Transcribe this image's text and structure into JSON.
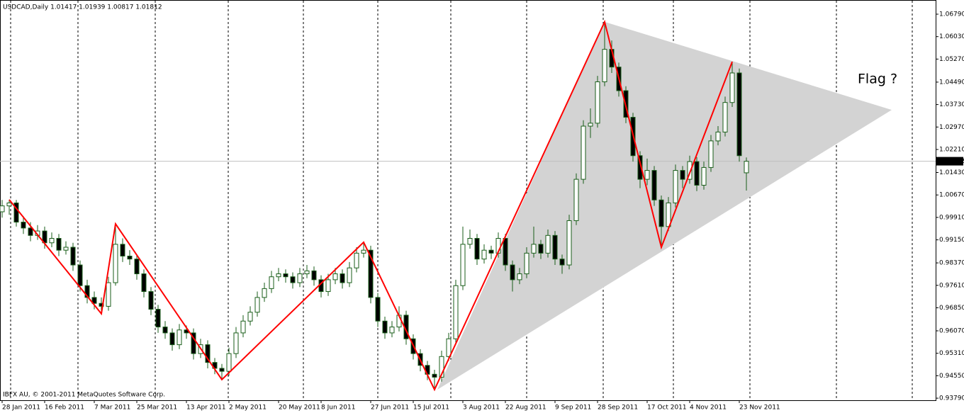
{
  "chart_data": {
    "type": "candlestick",
    "title": "USDCAD,Daily  1.01417 1.01939 1.00817 1.01812",
    "footer": "IBFX AU, © 2001-2011 MetaQuotes Software Corp.",
    "annotation": {
      "text": "Flag ?",
      "color": "#ff0000"
    },
    "candle_colors": {
      "up": "#ffffff",
      "down": "#000000",
      "outline": "#1a5e1a"
    },
    "categories": [
      "28 Jan 2011",
      null,
      null,
      null,
      null,
      null,
      "16 Feb 2011",
      null,
      null,
      null,
      null,
      null,
      null,
      "7 Mar 2011",
      null,
      null,
      null,
      null,
      null,
      "25 Mar 2011",
      null,
      null,
      null,
      null,
      null,
      null,
      "13 Apr 2011",
      null,
      null,
      null,
      null,
      null,
      "2 May 2011",
      null,
      null,
      null,
      null,
      null,
      null,
      "20 May 2011",
      null,
      null,
      null,
      null,
      null,
      "8 Jun 2011",
      null,
      null,
      null,
      null,
      null,
      null,
      "27 Jun 2011",
      null,
      null,
      null,
      null,
      null,
      "15 Jul 2011",
      null,
      null,
      null,
      null,
      null,
      null,
      "3 Aug 2011",
      null,
      null,
      null,
      null,
      null,
      "22 Aug 2011",
      null,
      null,
      null,
      null,
      null,
      null,
      "9 Sep 2011",
      null,
      null,
      null,
      null,
      null,
      "28 Sep 2011",
      null,
      null,
      null,
      null,
      null,
      null,
      "17 Oct 2011",
      null,
      null,
      null,
      null,
      null,
      "4 Nov 2011",
      null,
      null,
      null,
      null,
      null,
      null,
      "23 Nov 2011",
      null
    ],
    "ohlc": [
      [
        1.001,
        1.005,
        0.999,
        1.003
      ],
      [
        1.003,
        1.0051,
        1.0,
        1.004
      ],
      [
        1.004,
        1.005,
        0.996,
        0.9975
      ],
      [
        0.9975,
        0.9995,
        0.9935,
        0.9955
      ],
      [
        0.9955,
        0.9975,
        0.991,
        0.993
      ],
      [
        0.993,
        0.9965,
        0.9915,
        0.9945
      ],
      [
        0.9945,
        0.996,
        0.9885,
        0.9905
      ],
      [
        0.9905,
        0.994,
        0.989,
        0.992
      ],
      [
        0.992,
        0.9935,
        0.986,
        0.988
      ],
      [
        0.988,
        0.991,
        0.9865,
        0.989
      ],
      [
        0.989,
        0.9905,
        0.981,
        0.983
      ],
      [
        0.983,
        0.9845,
        0.974,
        0.976
      ],
      [
        0.976,
        0.978,
        0.97,
        0.972
      ],
      [
        0.972,
        0.974,
        0.968,
        0.97
      ],
      [
        0.97,
        0.972,
        0.9665,
        0.969
      ],
      [
        0.969,
        0.979,
        0.9675,
        0.977
      ],
      [
        0.977,
        0.9969,
        0.976,
        0.99
      ],
      [
        0.99,
        0.992,
        0.984,
        0.986
      ],
      [
        0.986,
        0.988,
        0.983,
        0.985
      ],
      [
        0.985,
        0.9865,
        0.978,
        0.98
      ],
      [
        0.98,
        0.9815,
        0.972,
        0.974
      ],
      [
        0.974,
        0.9755,
        0.966,
        0.968
      ],
      [
        0.968,
        0.9695,
        0.96,
        0.962
      ],
      [
        0.962,
        0.964,
        0.958,
        0.96
      ],
      [
        0.96,
        0.9615,
        0.954,
        0.956
      ],
      [
        0.956,
        0.963,
        0.9545,
        0.961
      ],
      [
        0.961,
        0.9625,
        0.958,
        0.96
      ],
      [
        0.96,
        0.9615,
        0.951,
        0.953
      ],
      [
        0.953,
        0.958,
        0.9515,
        0.956
      ],
      [
        0.956,
        0.9575,
        0.948,
        0.95
      ],
      [
        0.95,
        0.9515,
        0.946,
        0.948
      ],
      [
        0.948,
        0.9495,
        0.9442,
        0.947
      ],
      [
        0.947,
        0.955,
        0.9455,
        0.953
      ],
      [
        0.953,
        0.962,
        0.9515,
        0.96
      ],
      [
        0.96,
        0.966,
        0.9585,
        0.964
      ],
      [
        0.964,
        0.969,
        0.9625,
        0.967
      ],
      [
        0.967,
        0.974,
        0.9655,
        0.972
      ],
      [
        0.972,
        0.977,
        0.9705,
        0.975
      ],
      [
        0.975,
        0.981,
        0.9735,
        0.979
      ],
      [
        0.979,
        0.982,
        0.9775,
        0.98
      ],
      [
        0.98,
        0.9815,
        0.977,
        0.979
      ],
      [
        0.979,
        0.9805,
        0.975,
        0.977
      ],
      [
        0.977,
        0.982,
        0.9755,
        0.98
      ],
      [
        0.98,
        0.983,
        0.9785,
        0.981
      ],
      [
        0.981,
        0.9825,
        0.976,
        0.978
      ],
      [
        0.978,
        0.9795,
        0.972,
        0.974
      ],
      [
        0.974,
        0.98,
        0.9725,
        0.978
      ],
      [
        0.978,
        0.982,
        0.9765,
        0.98
      ],
      [
        0.98,
        0.9815,
        0.975,
        0.977
      ],
      [
        0.977,
        0.984,
        0.9755,
        0.982
      ],
      [
        0.982,
        0.989,
        0.9805,
        0.987
      ],
      [
        0.987,
        0.9907,
        0.9855,
        0.988
      ],
      [
        0.988,
        0.9895,
        0.97,
        0.972
      ],
      [
        0.972,
        0.9735,
        0.962,
        0.964
      ],
      [
        0.964,
        0.9655,
        0.958,
        0.96
      ],
      [
        0.96,
        0.964,
        0.9585,
        0.962
      ],
      [
        0.962,
        0.969,
        0.9605,
        0.966
      ],
      [
        0.966,
        0.9675,
        0.956,
        0.958
      ],
      [
        0.958,
        0.9595,
        0.951,
        0.953
      ],
      [
        0.953,
        0.9545,
        0.947,
        0.949
      ],
      [
        0.949,
        0.9505,
        0.944,
        0.946
      ],
      [
        0.946,
        0.9475,
        0.9408,
        0.945
      ],
      [
        0.945,
        0.954,
        0.9435,
        0.952
      ],
      [
        0.952,
        0.96,
        0.9505,
        0.958
      ],
      [
        0.958,
        0.978,
        0.9565,
        0.976
      ],
      [
        0.976,
        0.996,
        0.9745,
        0.99
      ],
      [
        0.99,
        0.995,
        0.9885,
        0.992
      ],
      [
        0.992,
        0.9935,
        0.983,
        0.985
      ],
      [
        0.985,
        0.99,
        0.9835,
        0.988
      ],
      [
        0.988,
        0.9895,
        0.985,
        0.987
      ],
      [
        0.987,
        0.994,
        0.9855,
        0.992
      ],
      [
        0.992,
        0.9935,
        0.981,
        0.983
      ],
      [
        0.983,
        0.9845,
        0.974,
        0.978
      ],
      [
        0.978,
        0.982,
        0.9765,
        0.98
      ],
      [
        0.98,
        0.989,
        0.9785,
        0.987
      ],
      [
        0.987,
        0.996,
        0.9855,
        0.99
      ],
      [
        0.99,
        0.9915,
        0.985,
        0.987
      ],
      [
        0.987,
        0.995,
        0.9855,
        0.993
      ],
      [
        0.993,
        0.9945,
        0.983,
        0.985
      ],
      [
        0.985,
        0.9865,
        0.98,
        0.983
      ],
      [
        0.983,
        1.0,
        0.9815,
        0.998
      ],
      [
        0.998,
        1.014,
        0.9965,
        1.012
      ],
      [
        1.012,
        1.032,
        1.0105,
        1.03
      ],
      [
        1.03,
        1.036,
        1.026,
        1.031
      ],
      [
        1.031,
        1.047,
        1.0295,
        1.045
      ],
      [
        1.045,
        1.0653,
        1.0435,
        1.056
      ],
      [
        1.056,
        1.059,
        1.048,
        1.05
      ],
      [
        1.05,
        1.0515,
        1.04,
        1.042
      ],
      [
        1.042,
        1.0435,
        1.031,
        1.033
      ],
      [
        1.033,
        1.0345,
        1.018,
        1.02
      ],
      [
        1.02,
        1.0215,
        1.009,
        1.012
      ],
      [
        1.012,
        1.019,
        1.01,
        1.015
      ],
      [
        1.015,
        1.0165,
        1.003,
        1.005
      ],
      [
        1.005,
        1.0065,
        0.989,
        0.996
      ],
      [
        0.996,
        1.006,
        0.9945,
        1.004
      ],
      [
        1.004,
        1.017,
        1.0025,
        1.015
      ],
      [
        1.015,
        1.0165,
        1.009,
        1.012
      ],
      [
        1.012,
        1.02,
        1.0105,
        1.018
      ],
      [
        1.018,
        1.0195,
        1.008,
        1.01
      ],
      [
        1.01,
        1.018,
        1.0085,
        1.016
      ],
      [
        1.016,
        1.027,
        1.0145,
        1.025
      ],
      [
        1.025,
        1.03,
        1.0235,
        1.028
      ],
      [
        1.028,
        1.04,
        1.0265,
        1.038
      ],
      [
        1.038,
        1.0518,
        1.0365,
        1.048
      ],
      [
        1.048,
        1.0495,
        1.018,
        1.02
      ],
      [
        1.0142,
        1.0194,
        1.0082,
        1.0181
      ]
    ],
    "zigzag": {
      "color": "#ff0000",
      "x": [
        1,
        14,
        16,
        31,
        51,
        61,
        85,
        93,
        103
      ],
      "values": [
        1.0051,
        0.9665,
        0.9969,
        0.9442,
        0.9907,
        0.9408,
        1.0653,
        0.989,
        1.0518
      ]
    },
    "triangle": {
      "color": "#d3d3d3",
      "x": [
        61.4,
        85,
        125.5
      ],
      "values": [
        0.9408,
        1.0653,
        1.0355
      ]
    },
    "current_price": {
      "value": 1.01812,
      "label": "1.01812"
    },
    "ylim": [
      0.9372,
      1.0727
    ],
    "yticks": [
      {
        "value": 1.0679,
        "label": "1.06790"
      },
      {
        "value": 1.0603,
        "label": "1.06030"
      },
      {
        "value": 1.0527,
        "label": "1.05270"
      },
      {
        "value": 1.0449,
        "label": "1.04490"
      },
      {
        "value": 1.0373,
        "label": "1.03730"
      },
      {
        "value": 1.0297,
        "label": "1.02970"
      },
      {
        "value": 1.0221,
        "label": "1.02210"
      },
      {
        "value": 1.0143,
        "label": "1.01430"
      },
      {
        "value": 1.0067,
        "label": "1.00670"
      },
      {
        "value": 0.9991,
        "label": "0.99910"
      },
      {
        "value": 0.9915,
        "label": "0.99150"
      },
      {
        "value": 0.9837,
        "label": "0.98370"
      },
      {
        "value": 0.9761,
        "label": "0.97610"
      },
      {
        "value": 0.9685,
        "label": "0.96850"
      },
      {
        "value": 0.9607,
        "label": "0.96070"
      },
      {
        "value": 0.9531,
        "label": "0.95310"
      },
      {
        "value": 0.9455,
        "label": "0.94550"
      },
      {
        "value": 0.9379,
        "label": "0.93790"
      }
    ]
  }
}
